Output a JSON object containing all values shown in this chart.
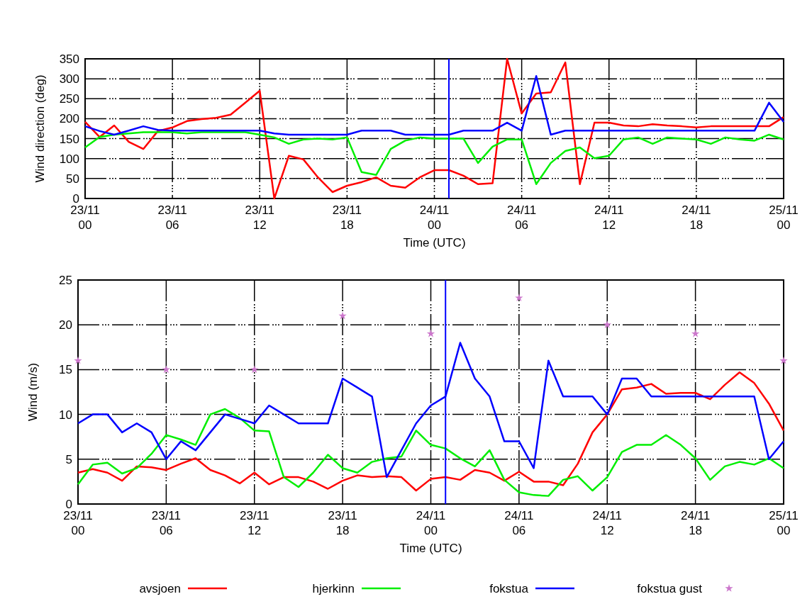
{
  "chart_data": [
    {
      "type": "line",
      "xlabel": "Time (UTC)",
      "ylabel": "Wind direction (deg)",
      "xlim": [
        "--11-23T00:00",
        "--11-25T00:00"
      ],
      "ylim": [
        0,
        350
      ],
      "xticks": [
        {
          "value": "--11-23T00:00",
          "label": "23/11\n00"
        },
        {
          "value": "--11-23T06:00",
          "label": "23/11\n06"
        },
        {
          "value": "--11-23T12:00",
          "label": "23/11\n12"
        },
        {
          "value": "--11-23T18:00",
          "label": "23/11\n18"
        },
        {
          "value": "--11-24T00:00",
          "label": "24/11\n00"
        },
        {
          "value": "--11-24T06:00",
          "label": "24/11\n06"
        },
        {
          "value": "--11-24T12:00",
          "label": "24/11\n12"
        },
        {
          "value": "--11-24T18:00",
          "label": "24/11\n18"
        },
        {
          "value": "--11-25T00:00",
          "label": "25/11\n00"
        }
      ],
      "yticks": [
        0,
        50,
        100,
        150,
        200,
        250,
        300,
        350
      ],
      "grid": true,
      "legend": false,
      "x": [
        "--11-23T00:00",
        "--11-23T01:00",
        "--11-23T02:00",
        "--11-23T03:00",
        "--11-23T04:00",
        "--11-23T05:00",
        "--11-23T06:00",
        "--11-23T07:00",
        "--11-23T08:00",
        "--11-23T09:00",
        "--11-23T10:00",
        "--11-23T11:00",
        "--11-23T12:00",
        "--11-23T13:00",
        "--11-23T14:00",
        "--11-23T15:00",
        "--11-23T16:00",
        "--11-23T17:00",
        "--11-23T18:00",
        "--11-23T19:00",
        "--11-23T20:00",
        "--11-23T21:00",
        "--11-23T22:00",
        "--11-23T23:00",
        "--11-24T00:00",
        "--11-24T01:00",
        "--11-24T02:00",
        "--11-24T03:00",
        "--11-24T04:00",
        "--11-24T05:00",
        "--11-24T06:00",
        "--11-24T07:00",
        "--11-24T08:00",
        "--11-24T09:00",
        "--11-24T10:00",
        "--11-24T11:00",
        "--11-24T12:00",
        "--11-24T13:00",
        "--11-24T14:00",
        "--11-24T15:00",
        "--11-24T16:00",
        "--11-24T17:00",
        "--11-24T18:00",
        "--11-24T19:00",
        "--11-24T20:00",
        "--11-24T21:00",
        "--11-24T22:00",
        "--11-24T23:00",
        "--11-25T00:00"
      ],
      "ref_lines": [
        {
          "axis": "x",
          "value": "--11-24T01:00",
          "color": "#0000ff"
        }
      ],
      "series": [
        {
          "color": "#ff0000",
          "values": [
            192,
            154,
            183,
            142,
            124,
            169,
            178,
            194,
            199,
            202,
            210,
            240,
            270,
            0,
            107,
            98,
            53,
            16,
            32,
            41,
            53,
            32,
            27,
            53,
            71,
            71,
            57,
            36,
            38,
            350,
            213,
            263,
            266,
            341,
            36,
            190,
            190,
            183,
            181,
            186,
            183,
            181,
            178,
            181,
            181,
            181,
            181,
            181,
            204
          ]
        },
        {
          "color": "#00ee00",
          "values": [
            128,
            154,
            160,
            163,
            166,
            166,
            166,
            163,
            166,
            166,
            166,
            166,
            160,
            153,
            137,
            148,
            150,
            148,
            153,
            66,
            59,
            124,
            145,
            153,
            150,
            150,
            150,
            89,
            130,
            148,
            148,
            36,
            89,
            119,
            128,
            101,
            107,
            148,
            153,
            137,
            153,
            150,
            148,
            137,
            153,
            148,
            145,
            160,
            148
          ]
        },
        {
          "color": "#0000ff",
          "values": [
            181,
            169,
            160,
            170,
            181,
            172,
            170,
            170,
            170,
            170,
            170,
            170,
            170,
            163,
            160,
            160,
            160,
            160,
            160,
            170,
            170,
            170,
            160,
            160,
            160,
            160,
            170,
            170,
            170,
            190,
            170,
            307,
            160,
            170,
            170,
            170,
            170,
            170,
            170,
            170,
            170,
            170,
            170,
            170,
            170,
            170,
            170,
            240,
            192
          ]
        }
      ]
    },
    {
      "type": "line",
      "xlabel": "Time (UTC)",
      "ylabel": "Wind (m/s)",
      "xlim": [
        "--11-23T00:00",
        "--11-25T00:00"
      ],
      "ylim": [
        0,
        25
      ],
      "xticks": [
        {
          "value": "--11-23T00:00",
          "label": "23/11\n00"
        },
        {
          "value": "--11-23T06:00",
          "label": "23/11\n06"
        },
        {
          "value": "--11-23T12:00",
          "label": "23/11\n12"
        },
        {
          "value": "--11-23T18:00",
          "label": "23/11\n18"
        },
        {
          "value": "--11-24T00:00",
          "label": "24/11\n00"
        },
        {
          "value": "--11-24T06:00",
          "label": "24/11\n06"
        },
        {
          "value": "--11-24T12:00",
          "label": "24/11\n12"
        },
        {
          "value": "--11-24T18:00",
          "label": "24/11\n18"
        },
        {
          "value": "--11-25T00:00",
          "label": "25/11\n00"
        }
      ],
      "yticks": [
        0,
        5,
        10,
        15,
        20,
        25
      ],
      "grid": true,
      "legend": "bottom",
      "x": [
        "--11-23T00:00",
        "--11-23T01:00",
        "--11-23T02:00",
        "--11-23T03:00",
        "--11-23T04:00",
        "--11-23T05:00",
        "--11-23T06:00",
        "--11-23T07:00",
        "--11-23T08:00",
        "--11-23T09:00",
        "--11-23T10:00",
        "--11-23T11:00",
        "--11-23T12:00",
        "--11-23T13:00",
        "--11-23T14:00",
        "--11-23T15:00",
        "--11-23T16:00",
        "--11-23T17:00",
        "--11-23T18:00",
        "--11-23T19:00",
        "--11-23T20:00",
        "--11-23T21:00",
        "--11-23T22:00",
        "--11-23T23:00",
        "--11-24T00:00",
        "--11-24T01:00",
        "--11-24T02:00",
        "--11-24T03:00",
        "--11-24T04:00",
        "--11-24T05:00",
        "--11-24T06:00",
        "--11-24T07:00",
        "--11-24T08:00",
        "--11-24T09:00",
        "--11-24T10:00",
        "--11-24T11:00",
        "--11-24T12:00",
        "--11-24T13:00",
        "--11-24T14:00",
        "--11-24T15:00",
        "--11-24T16:00",
        "--11-24T17:00",
        "--11-24T18:00",
        "--11-24T19:00",
        "--11-24T20:00",
        "--11-24T21:00",
        "--11-24T22:00",
        "--11-24T23:00",
        "--11-25T00:00"
      ],
      "ref_lines": [
        {
          "axis": "x",
          "value": "--11-24T01:00",
          "color": "#0000ff"
        }
      ],
      "series": [
        {
          "name": "avsjoen",
          "color": "#ff0000",
          "values": [
            3.5,
            3.9,
            3.5,
            2.6,
            4.2,
            4.1,
            3.8,
            4.5,
            5.1,
            3.8,
            3.2,
            2.3,
            3.5,
            2.2,
            3.0,
            3.0,
            2.5,
            1.7,
            2.6,
            3.2,
            3.0,
            3.1,
            3.0,
            1.5,
            2.8,
            3.0,
            2.7,
            3.8,
            3.5,
            2.6,
            3.6,
            2.5,
            2.5,
            2.1,
            4.5,
            8.0,
            10.0,
            12.8,
            13.0,
            13.4,
            12.3,
            12.4,
            12.4,
            11.7,
            13.3,
            14.7,
            13.5,
            11.2,
            8.2
          ]
        },
        {
          "name": "hjerkinn",
          "color": "#00ee00",
          "values": [
            2.2,
            4.4,
            4.6,
            3.4,
            4.0,
            5.6,
            7.7,
            7.2,
            6.6,
            10.0,
            10.6,
            9.6,
            8.2,
            8.1,
            3.0,
            1.9,
            3.5,
            5.5,
            4.0,
            3.5,
            4.7,
            5.1,
            5.3,
            8.2,
            6.6,
            6.2,
            5.1,
            4.2,
            6.0,
            2.7,
            1.3,
            1.0,
            0.9,
            2.7,
            3.1,
            1.5,
            3.0,
            5.8,
            6.6,
            6.6,
            7.7,
            6.6,
            5.1,
            2.7,
            4.2,
            4.7,
            4.4,
            5.1,
            4.0
          ]
        },
        {
          "name": "fokstua",
          "color": "#0000ff",
          "values": [
            9,
            10,
            10,
            8,
            9,
            8,
            5,
            7,
            6,
            8,
            10,
            9.5,
            9,
            11,
            10,
            9,
            9,
            9,
            14,
            13,
            12,
            3,
            6,
            9,
            11,
            12,
            18,
            14,
            12,
            7,
            7,
            4,
            16,
            12,
            12,
            12,
            10,
            14,
            14,
            12,
            12,
            12,
            12,
            12,
            12,
            12,
            12,
            5,
            7
          ]
        },
        {
          "name": "fokstua gust",
          "type": "scatter",
          "marker": "star",
          "color": "#cc77cc",
          "x": [
            "--11-23T00:00",
            "--11-23T06:00",
            "--11-23T12:00",
            "--11-23T18:00",
            "--11-24T00:00",
            "--11-24T06:00",
            "--11-24T12:00",
            "--11-24T18:00",
            "--11-25T00:00"
          ],
          "values": [
            16,
            15,
            15,
            21,
            19,
            23,
            20,
            19,
            16
          ]
        }
      ]
    }
  ]
}
